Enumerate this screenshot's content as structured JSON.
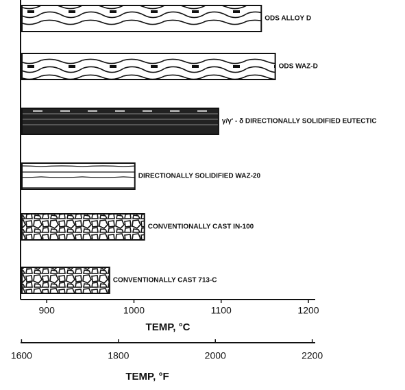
{
  "chart_data": {
    "type": "barh",
    "categories": [
      "ODS ALLOY D",
      "ODS WAZ-D",
      "γ/γ' - δ  DIRECTIONALLY SOLIDIFIED EUTECTIC",
      "DIRECTIONALLY SOLIDIFIED WAZ-20",
      "CONVENTIONALLY CAST IN-100",
      "CONVENTIONALLY CAST 713-C"
    ],
    "values": [
      1146,
      1162,
      1097,
      1001,
      1012,
      972
    ],
    "color": "#111111",
    "xlim": [
      870,
      1200
    ],
    "xticks": [
      900,
      1000,
      1100,
      1200
    ],
    "xlabel": "TEMP, °C",
    "x2lim": [
      1598,
      2192
    ],
    "x2ticks": [
      1600,
      1800,
      2000,
      2200
    ],
    "x2label": "TEMP, °F",
    "grid": false
  }
}
